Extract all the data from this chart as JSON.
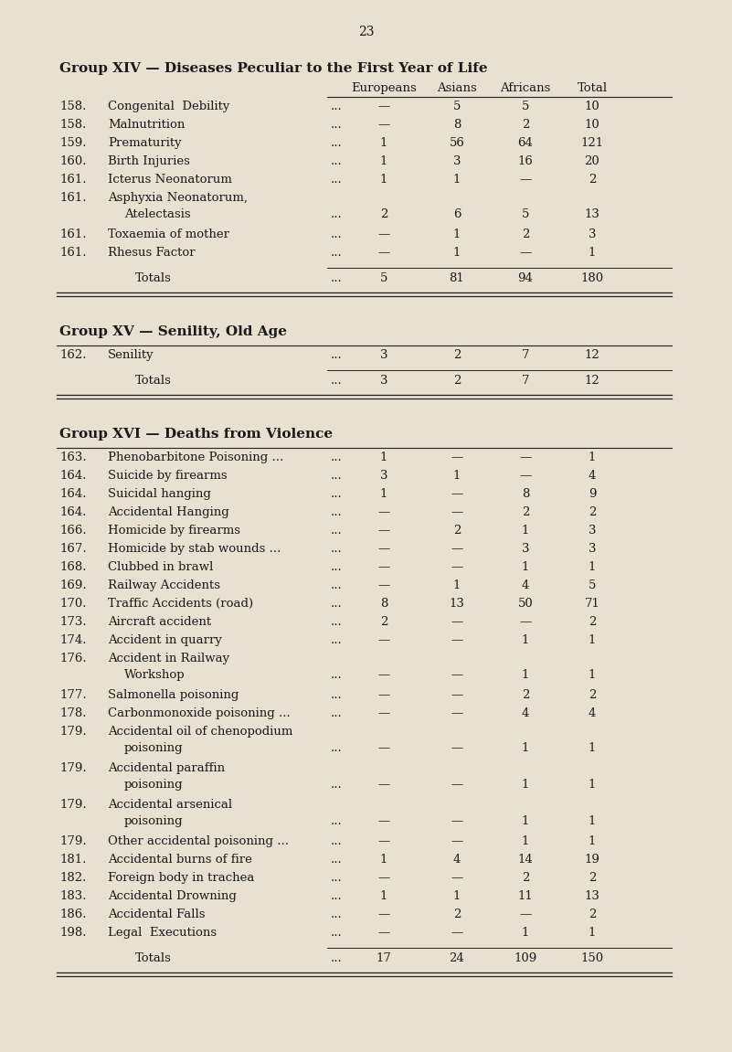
{
  "page_number": "23",
  "background_color": "#e8e0d0",
  "text_color": "#1a1a1a",
  "font_family": "DejaVu Serif",
  "groups": [
    {
      "title": "Group XIV — Diseases Peculiar to the First Year of Life",
      "show_headers": true,
      "columns": [
        "Europeans",
        "Asians",
        "Africans",
        "Total"
      ],
      "rows": [
        {
          "num": "158.",
          "label": "Congenital  Debility",
          "dots": "...",
          "euro": "—",
          "asian": "5",
          "african": "5",
          "total": "10",
          "two_line": false
        },
        {
          "num": "158.",
          "label": "Malnutrition",
          "dots": "...",
          "euro": "—",
          "asian": "8",
          "african": "2",
          "total": "10",
          "two_line": false
        },
        {
          "num": "159.",
          "label": "Prematurity",
          "dots": "...",
          "euro": "1",
          "asian": "56",
          "african": "64",
          "total": "121",
          "two_line": false
        },
        {
          "num": "160.",
          "label": "Birth Injuries",
          "dots": "...",
          "euro": "1",
          "asian": "3",
          "african": "16",
          "total": "20",
          "two_line": false
        },
        {
          "num": "161.",
          "label": "Icterus Neonatorum",
          "dots": "...",
          "euro": "1",
          "asian": "1",
          "african": "—",
          "total": "2",
          "two_line": false
        },
        {
          "num": "161.",
          "label1": "Asphyxia Neonatorum,",
          "label2": "Atelectasis",
          "dots": "...",
          "euro": "2",
          "asian": "6",
          "african": "5",
          "total": "13",
          "two_line": true
        },
        {
          "num": "161.",
          "label": "Toxaemia of mother",
          "dots": "...",
          "euro": "—",
          "asian": "1",
          "african": "2",
          "total": "3",
          "two_line": false
        },
        {
          "num": "161.",
          "label": "Rhesus Factor",
          "dots": "...",
          "euro": "—",
          "asian": "1",
          "african": "—",
          "total": "1",
          "two_line": false
        }
      ],
      "totals": {
        "label": "Totals",
        "dots": "...",
        "euro": "5",
        "asian": "81",
        "african": "94",
        "total": "180"
      }
    },
    {
      "title": "Group XV — Senility, Old Age",
      "show_headers": false,
      "columns": [
        "Europeans",
        "Asians",
        "Africans",
        "Total"
      ],
      "rows": [
        {
          "num": "162.",
          "label": "Senility",
          "dots": "...",
          "euro": "3",
          "asian": "2",
          "african": "7",
          "total": "12",
          "two_line": false
        }
      ],
      "totals": {
        "label": "Totals",
        "dots": "...",
        "euro": "3",
        "asian": "2",
        "african": "7",
        "total": "12"
      }
    },
    {
      "title": "Group XVI — Deaths from Violence",
      "show_headers": false,
      "columns": [
        "Europeans",
        "Asians",
        "Africans",
        "Total"
      ],
      "rows": [
        {
          "num": "163.",
          "label": "Phenobarbitone Poisoning ...",
          "dots": "...",
          "euro": "1",
          "asian": "—",
          "african": "—",
          "total": "1",
          "two_line": false
        },
        {
          "num": "164.",
          "label": "Suicide by firearms",
          "dots": "...",
          "euro": "3",
          "asian": "1",
          "african": "—",
          "total": "4",
          "two_line": false
        },
        {
          "num": "164.",
          "label": "Suicidal hanging",
          "dots": "...",
          "euro": "1",
          "asian": "—",
          "african": "8",
          "total": "9",
          "two_line": false
        },
        {
          "num": "164.",
          "label": "Accidental Hanging",
          "dots": "...",
          "euro": "—",
          "asian": "—",
          "african": "2",
          "total": "2",
          "two_line": false
        },
        {
          "num": "166.",
          "label": "Homicide by firearms",
          "dots": "...",
          "euro": "—",
          "asian": "2",
          "african": "1",
          "total": "3",
          "two_line": false
        },
        {
          "num": "167.",
          "label": "Homicide by stab wounds ...",
          "dots": "...",
          "euro": "—",
          "asian": "—",
          "african": "3",
          "total": "3",
          "two_line": false
        },
        {
          "num": "168.",
          "label": "Clubbed in brawl",
          "dots": "...",
          "euro": "—",
          "asian": "—",
          "african": "1",
          "total": "1",
          "two_line": false
        },
        {
          "num": "169.",
          "label": "Railway Accidents",
          "dots": "...",
          "euro": "—",
          "asian": "1",
          "african": "4",
          "total": "5",
          "two_line": false
        },
        {
          "num": "170.",
          "label": "Traffic Accidents (road)",
          "dots": "...",
          "euro": "8",
          "asian": "13",
          "african": "50",
          "total": "71",
          "two_line": false
        },
        {
          "num": "173.",
          "label": "Aircraft accident",
          "dots": "...",
          "euro": "2",
          "asian": "—",
          "african": "—",
          "total": "2",
          "two_line": false
        },
        {
          "num": "174.",
          "label": "Accident in quarry",
          "dots": "...",
          "euro": "—",
          "asian": "—",
          "african": "1",
          "total": "1",
          "two_line": false
        },
        {
          "num": "176.",
          "label1": "Accident in Railway",
          "label2": "Workshop",
          "dots": "...",
          "euro": "—",
          "asian": "—",
          "african": "1",
          "total": "1",
          "two_line": true
        },
        {
          "num": "177.",
          "label": "Salmonella poisoning",
          "dots": "...",
          "euro": "—",
          "asian": "—",
          "african": "2",
          "total": "2",
          "two_line": false
        },
        {
          "num": "178.",
          "label": "Carbonmonoxide poisoning ...",
          "dots": "...",
          "euro": "—",
          "asian": "—",
          "african": "4",
          "total": "4",
          "two_line": false
        },
        {
          "num": "179.",
          "label1": "Accidental oil of chenopodium",
          "label2": "poisoning",
          "dots": "...",
          "euro": "—",
          "asian": "—",
          "african": "1",
          "total": "1",
          "two_line": true
        },
        {
          "num": "179.",
          "label1": "Accidental paraffin",
          "label2": "poisoning",
          "dots": "...",
          "euro": "—",
          "asian": "—",
          "african": "1",
          "total": "1",
          "two_line": true
        },
        {
          "num": "179.",
          "label1": "Accidental arsenical",
          "label2": "poisoning",
          "dots": "...",
          "euro": "—",
          "asian": "—",
          "african": "1",
          "total": "1",
          "two_line": true
        },
        {
          "num": "179.",
          "label": "Other accidental poisoning ...",
          "dots": "...",
          "euro": "—",
          "asian": "—",
          "african": "1",
          "total": "1",
          "two_line": false
        },
        {
          "num": "181.",
          "label": "Accidental burns of fire",
          "dots": "...",
          "euro": "1",
          "asian": "4",
          "african": "14",
          "total": "19",
          "two_line": false
        },
        {
          "num": "182.",
          "label": "Foreign body in trachea",
          "dots": "...",
          "euro": "—",
          "asian": "—",
          "african": "2",
          "total": "2",
          "two_line": false
        },
        {
          "num": "183.",
          "label": "Accidental Drowning",
          "dots": "...",
          "euro": "1",
          "asian": "1",
          "african": "11",
          "total": "13",
          "two_line": false
        },
        {
          "num": "186.",
          "label": "Accidental Falls",
          "dots": "...",
          "euro": "—",
          "asian": "2",
          "african": "—",
          "total": "2",
          "two_line": false
        },
        {
          "num": "198.",
          "label": "Legal  Executions",
          "dots": "...",
          "euro": "—",
          "asian": "—",
          "african": "1",
          "total": "1",
          "two_line": false
        }
      ],
      "totals": {
        "label": "Totals",
        "dots": "...",
        "euro": "17",
        "asian": "24",
        "african": "109",
        "total": "150"
      }
    }
  ]
}
